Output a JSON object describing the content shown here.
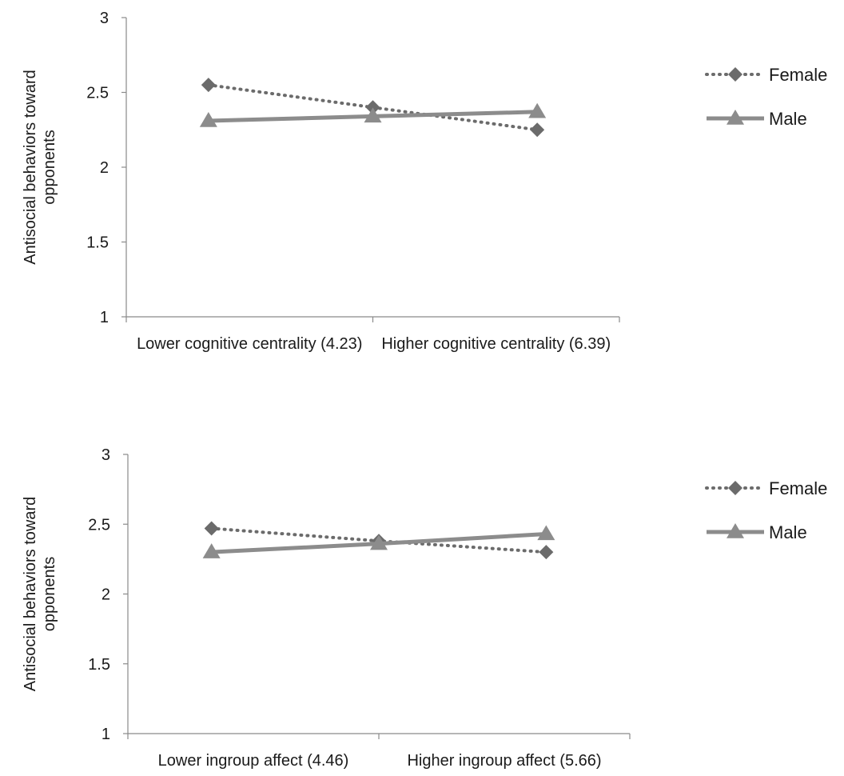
{
  "chart_data": [
    {
      "type": "line",
      "title": "",
      "xlabel": "",
      "ylabel": "Antisocial behaviors toward opponents",
      "categories": [
        "Lower cognitive centrality (4.23)",
        "Higher cognitive centrality (6.39)"
      ],
      "x": [
        0,
        1,
        2
      ],
      "ylim": [
        1,
        3
      ],
      "yticks": [
        "1",
        "1.5",
        "2",
        "2.5",
        "3"
      ],
      "legend": "right",
      "series": [
        {
          "name": "Female",
          "values": [
            2.55,
            2.4,
            2.25
          ],
          "color": "#6b6b6b",
          "style": "dotted",
          "marker": "diamond"
        },
        {
          "name": "Male",
          "values": [
            2.31,
            2.34,
            2.37
          ],
          "color": "#8c8c8c",
          "style": "solid",
          "marker": "triangle"
        }
      ]
    },
    {
      "type": "line",
      "title": "",
      "xlabel": "",
      "ylabel": "Antisocial behaviors toward opponents",
      "categories": [
        "Lower ingroup affect (4.46)",
        "Higher ingroup affect (5.66)"
      ],
      "x": [
        0,
        1,
        2
      ],
      "ylim": [
        1,
        3
      ],
      "yticks": [
        "1",
        "1.5",
        "2",
        "2.5",
        "3"
      ],
      "legend": "right",
      "series": [
        {
          "name": "Female",
          "values": [
            2.47,
            2.38,
            2.3
          ],
          "color": "#6b6b6b",
          "style": "dotted",
          "marker": "diamond"
        },
        {
          "name": "Male",
          "values": [
            2.3,
            2.36,
            2.43
          ],
          "color": "#8c8c8c",
          "style": "solid",
          "marker": "triangle"
        }
      ]
    }
  ]
}
